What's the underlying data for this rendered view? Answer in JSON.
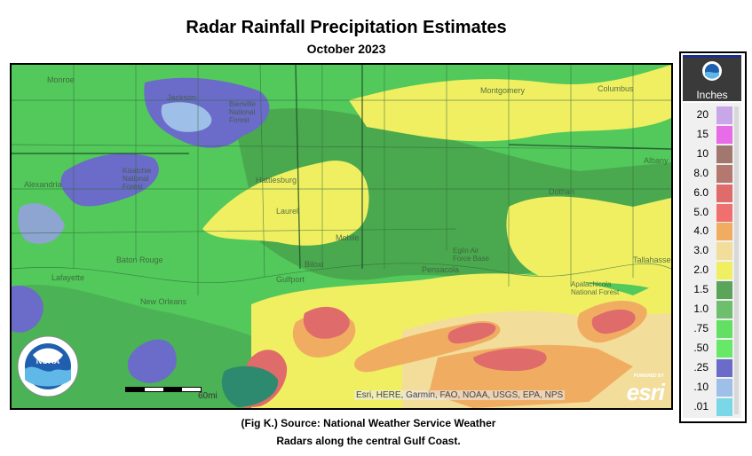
{
  "title": "Radar Rainfall Precipitation Estimates",
  "subtitle": "October 2023",
  "caption_line1": "(Fig K.) Source: National Weather Service Weather",
  "caption_line2": "Radars along the central Gulf Coast.",
  "map": {
    "cities": [
      {
        "label": "Monroe"
      },
      {
        "label": "Jackson"
      },
      {
        "label": "Bienville National Forest"
      },
      {
        "label": "Montgomery"
      },
      {
        "label": "Columbus"
      },
      {
        "label": "Alexandria"
      },
      {
        "label": "Kisatchie National Forest"
      },
      {
        "label": "Hattiesburg"
      },
      {
        "label": "Albany"
      },
      {
        "label": "Dothan"
      },
      {
        "label": "Mobile"
      },
      {
        "label": "Eglin Air Force Base"
      },
      {
        "label": "Baton Rouge"
      },
      {
        "label": "Biloxi"
      },
      {
        "label": "Gulfport"
      },
      {
        "label": "Pensacola"
      },
      {
        "label": "Tallahassee"
      },
      {
        "label": "Lafayette"
      },
      {
        "label": "Apalachicola National Forest"
      },
      {
        "label": "New Orleans"
      },
      {
        "label": "Laurel"
      }
    ],
    "scale_label": "60mi",
    "attribution": "Esri, HERE, Garmin, FAO, NOAA, USGS, EPA, NPS",
    "esri_powered": "POWERED BY",
    "esri_logo": "esri",
    "noaa_label": "NOAA"
  },
  "legend": {
    "unit": "Inches",
    "items": [
      {
        "label": "20",
        "color": "#c9a6e8"
      },
      {
        "label": "15",
        "color": "#e86be8"
      },
      {
        "label": "10",
        "color": "#a0786e"
      },
      {
        "label": "8.0",
        "color": "#b57870"
      },
      {
        "label": "6.0",
        "color": "#e06b6b"
      },
      {
        "label": "5.0",
        "color": "#f07070"
      },
      {
        "label": "4.0",
        "color": "#f0ad62"
      },
      {
        "label": "3.0",
        "color": "#f2dd9a"
      },
      {
        "label": "2.0",
        "color": "#f0ef62"
      },
      {
        "label": "1.5",
        "color": "#5aa55a"
      },
      {
        "label": "1.0",
        "color": "#6dbf6d"
      },
      {
        "label": ".75",
        "color": "#63e063"
      },
      {
        "label": ".50",
        "color": "#68e868"
      },
      {
        "label": ".25",
        "color": "#6b6bc9"
      },
      {
        "label": ".10",
        "color": "#9ec0e8"
      },
      {
        "label": ".01",
        "color": "#7ad7e8"
      }
    ]
  }
}
